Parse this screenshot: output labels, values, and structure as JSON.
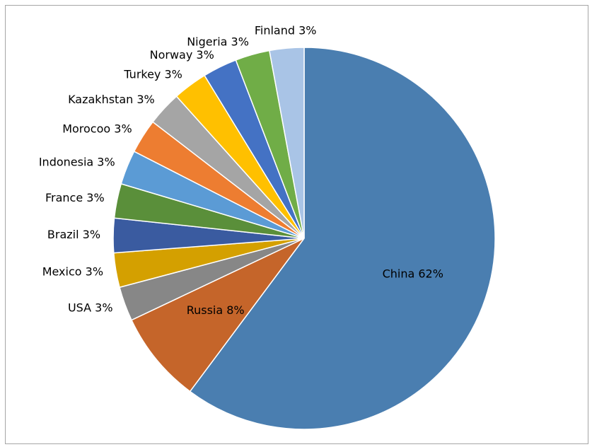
{
  "chart_data": {
    "type": "pie",
    "values": [
      62,
      8,
      3,
      3,
      3,
      3,
      3,
      3,
      3,
      3,
      3,
      3,
      3
    ],
    "value_labels": [
      "China 62%",
      "Russia 8%",
      "USA 3%",
      "Mexico 3%",
      "Brazil 3%",
      "France 3%",
      "Indonesia 3%",
      "Morocoo 3%",
      "Kazakhstan 3%",
      "Turkey 3%",
      "Norway 3%",
      "Nigeria 3%",
      "Finland 3%"
    ],
    "colors": [
      "#4a7eb0",
      "#c5652a",
      "#878787",
      "#d4a000",
      "#3a5ba0",
      "#5a8f3a",
      "#5b9bd5",
      "#ed7d31",
      "#a5a5a5",
      "#ffc000",
      "#4472c4",
      "#70ad47",
      "#a9c4e6"
    ]
  }
}
